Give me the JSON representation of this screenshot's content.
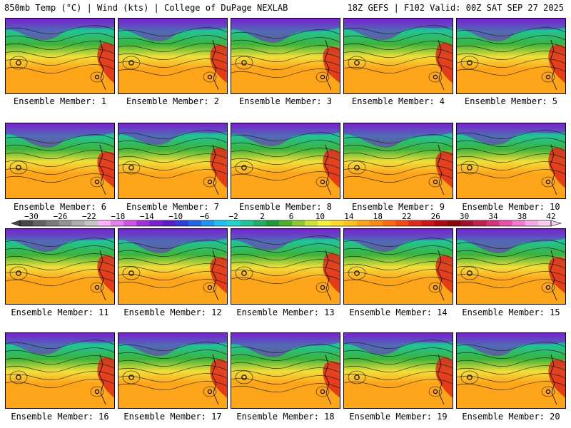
{
  "header": {
    "left_title": "850mb Temp (°C) | Wind (kts) | College of DuPage NEXLAB",
    "right_title": "18Z GEFS | F102 Valid: 00Z SAT SEP 27 2025"
  },
  "members": [
    {
      "label": "Ensemble Member: 1"
    },
    {
      "label": "Ensemble Member: 2"
    },
    {
      "label": "Ensemble Member: 3"
    },
    {
      "label": "Ensemble Member: 4"
    },
    {
      "label": "Ensemble Member: 5"
    },
    {
      "label": "Ensemble Member: 6"
    },
    {
      "label": "Ensemble Member: 7"
    },
    {
      "label": "Ensemble Member: 8"
    },
    {
      "label": "Ensemble Member: 9"
    },
    {
      "label": "Ensemble Member: 10"
    },
    {
      "label": "Ensemble Member: 11"
    },
    {
      "label": "Ensemble Member: 12"
    },
    {
      "label": "Ensemble Member: 13"
    },
    {
      "label": "Ensemble Member: 14"
    },
    {
      "label": "Ensemble Member: 15"
    },
    {
      "label": "Ensemble Member: 16"
    },
    {
      "label": "Ensemble Member: 17"
    },
    {
      "label": "Ensemble Member: 18"
    },
    {
      "label": "Ensemble Member: 19"
    },
    {
      "label": "Ensemble Member: 20"
    }
  ],
  "colorbar": {
    "tick_labels": [
      "−30",
      "−26",
      "−22",
      "−18",
      "−14",
      "−10",
      "−6",
      "−2",
      "2",
      "6",
      "10",
      "14",
      "18",
      "22",
      "26",
      "30",
      "34",
      "38",
      "42"
    ],
    "colors": [
      "#474747",
      "#606060",
      "#7a7a7a",
      "#939393",
      "#adadad",
      "#c4c4c4",
      "#ffb3ff",
      "#e580f0",
      "#cc55e6",
      "#a030d8",
      "#7a1fd0",
      "#5a1ec8",
      "#2c3fd8",
      "#1f66e6",
      "#1f95f2",
      "#1fc1f5",
      "#20d6cf",
      "#20c49a",
      "#22ad64",
      "#1f9a38",
      "#4fae2a",
      "#8ec832",
      "#cbe236",
      "#f5f03a",
      "#ffd82a",
      "#ffc21f",
      "#ffa51a",
      "#ff8a14",
      "#ff6a10",
      "#f24a10",
      "#e0281a",
      "#c8141a",
      "#aa0a12",
      "#8a0608",
      "#a01030",
      "#c02050",
      "#d8307a",
      "#e850a8",
      "#f07ad0",
      "#f5a8e8",
      "#f9ccf2"
    ]
  },
  "map_colors": {
    "cold": "#7a1fd0",
    "teal": "#20c49a",
    "green": "#3cb43c",
    "yellow": "#f0e03a",
    "orange": "#ffa51a",
    "hot": "#e0281a"
  }
}
